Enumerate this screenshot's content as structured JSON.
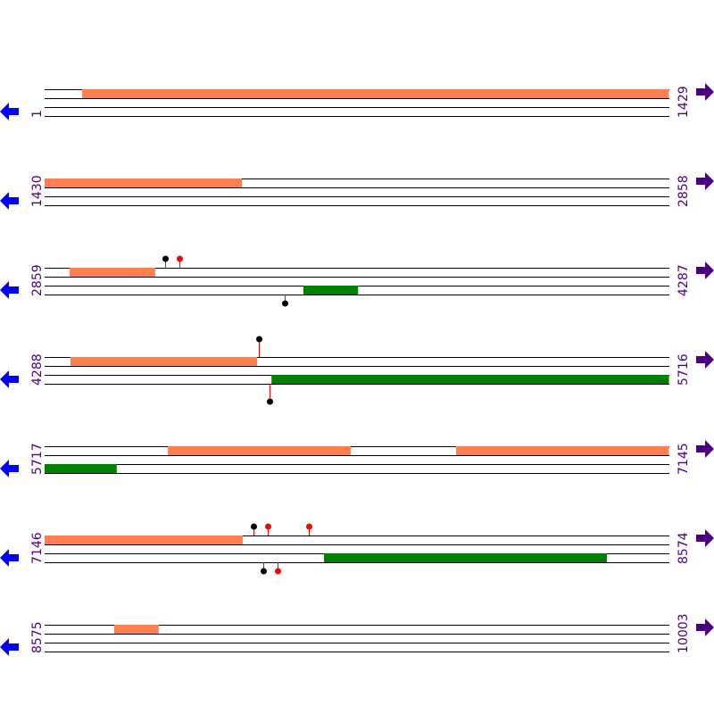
{
  "colors": {
    "forward_feature": "#ff7f50",
    "reverse_feature": "#008000",
    "line": "#000000",
    "label": "#4b0082",
    "left_arrow": "#0000ff",
    "right_arrow": "#4b0082",
    "stem": "#ff0000",
    "marker_black": "#000000",
    "marker_red": "#ff0000"
  },
  "bp_per_row": 1429,
  "rows": [
    {
      "start": "1",
      "end": "1429",
      "forward": [
        [
          87,
          1429
        ]
      ],
      "reverse": [],
      "markers_top": [],
      "markers_bottom": []
    },
    {
      "start": "1430",
      "end": "2858",
      "forward": [
        [
          1430,
          1881
        ]
      ],
      "reverse": [],
      "markers_top": [],
      "markers_bottom": []
    },
    {
      "start": "2859",
      "end": "4287",
      "forward": [
        [
          2916,
          3112
        ]
      ],
      "reverse": [
        [
          3451,
          3576
        ]
      ],
      "markers_top": [
        {
          "pos": 3135,
          "color": "black"
        },
        {
          "pos": 3167,
          "color": "red"
        }
      ],
      "markers_bottom": [
        {
          "pos": 3408,
          "color": "black"
        }
      ]
    },
    {
      "start": "4288",
      "end": "5716",
      "forward": [
        [
          4347,
          4774
        ]
      ],
      "reverse": [
        [
          4807,
          5716
        ]
      ],
      "markers_top": [
        {
          "pos": 4778,
          "color": "black"
        }
      ],
      "markers_bottom": [
        {
          "pos": 4802,
          "color": "black"
        }
      ]
    },
    {
      "start": "5717",
      "end": "7145",
      "forward": [
        [
          5999,
          6417
        ],
        [
          6658,
          7145
        ]
      ],
      "reverse": [
        [
          5717,
          5882
        ]
      ],
      "markers_top": [],
      "markers_bottom": []
    },
    {
      "start": "7146",
      "end": "8574",
      "forward": [
        [
          7146,
          7599
        ]
      ],
      "reverse": [
        [
          7785,
          8432
        ]
      ],
      "markers_top": [
        {
          "pos": 7624,
          "color": "black"
        },
        {
          "pos": 7656,
          "color": "red"
        },
        {
          "pos": 7750,
          "color": "red"
        }
      ],
      "markers_bottom": [
        {
          "pos": 7646,
          "color": "black"
        },
        {
          "pos": 7679,
          "color": "red"
        }
      ]
    },
    {
      "start": "8575",
      "end": "10003",
      "forward": [
        [
          8734,
          8836
        ]
      ],
      "reverse": [],
      "markers_top": [],
      "markers_bottom": []
    }
  ]
}
